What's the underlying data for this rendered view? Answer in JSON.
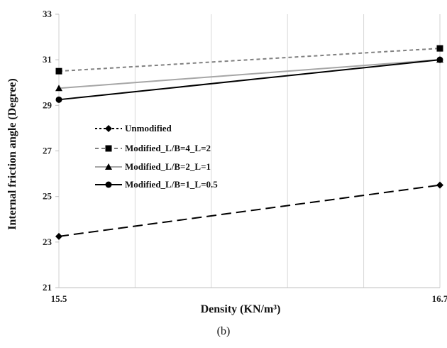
{
  "chart_data": {
    "type": "line",
    "xlabel": "Density (KN/m³)",
    "ylabel": "Internal friction angle (Degree)",
    "x": [
      15.5,
      16.7
    ],
    "x_ticks": [
      "15.5",
      "16.7"
    ],
    "xlim": [
      15.5,
      16.7
    ],
    "ylim": [
      21,
      33
    ],
    "y_ticks": [
      21,
      23,
      25,
      27,
      29,
      31,
      33
    ],
    "grid": "vertical",
    "legend_position": "left-middle",
    "series": [
      {
        "name": "Unmodified",
        "values": [
          23.25,
          25.5
        ],
        "color": "#000000",
        "dash": "long-dash",
        "marker": "diamond"
      },
      {
        "name": "Modified_L/B=4_L=2",
        "values": [
          30.5,
          31.5
        ],
        "color": "#808080",
        "dash": "short-dash",
        "marker": "square"
      },
      {
        "name": "Modified_L/B=2_L=1",
        "values": [
          29.75,
          31.0
        ],
        "color": "#a6a6a6",
        "dash": "solid",
        "marker": "triangle"
      },
      {
        "name": "Modified_L/B=1_L=0.5",
        "values": [
          29.25,
          31.0
        ],
        "color": "#000000",
        "dash": "solid",
        "marker": "circle"
      }
    ]
  },
  "caption": "(b)"
}
